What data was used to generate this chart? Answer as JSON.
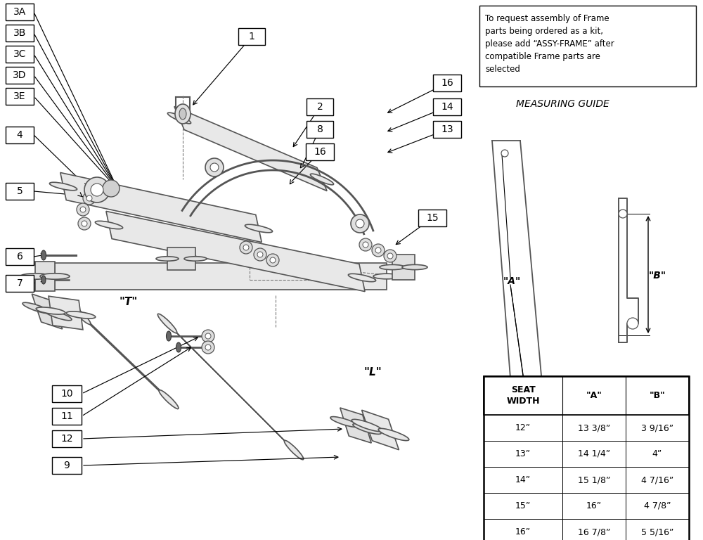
{
  "bg_color": "#ffffff",
  "note_text": "To request assembly of Frame\nparts being ordered as a kit,\nplease add “ASSY-FRAME” after\ncompatible Frame parts are\nselected",
  "measuring_guide_title": "MEASURING GUIDE",
  "label_T": "\"T\"",
  "label_L": "\"L\"",
  "label_A": "\"A\"",
  "label_B": "\"B\"",
  "table_headers": [
    "SEAT\nWIDTH",
    "\"A\"",
    "\"B\""
  ],
  "table_rows": [
    [
      "12”",
      "13 3/8”",
      "3 9/16”"
    ],
    [
      "13”",
      "14 1/4”",
      "4”"
    ],
    [
      "14”",
      "15 1/8”",
      "4 7/16”"
    ],
    [
      "15”",
      "16”",
      "4 7/8”"
    ],
    [
      "16”",
      "16 7/8”",
      "5 5/16”"
    ]
  ]
}
